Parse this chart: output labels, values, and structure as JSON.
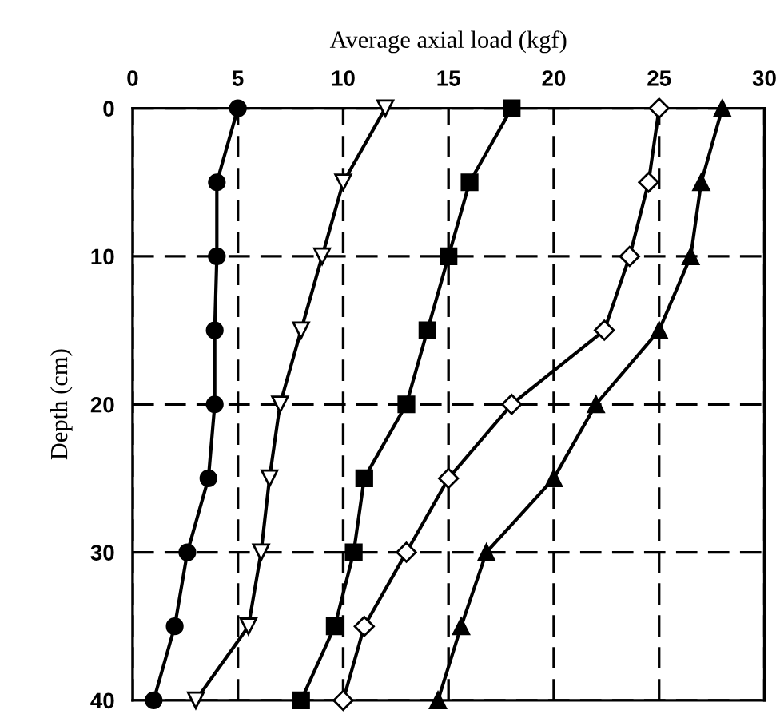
{
  "chart_data": {
    "type": "line",
    "xlabel": "Average axial load (kgf)",
    "ylabel": "Depth (cm)",
    "xlim": [
      0,
      30
    ],
    "xticks": [
      0,
      5,
      10,
      15,
      20,
      25,
      30
    ],
    "ylim": [
      40,
      0
    ],
    "yticks": [
      0,
      10,
      20,
      30,
      40
    ],
    "grid": true,
    "line_style": "solid",
    "series": [
      {
        "color": "#000000",
        "marker": "circle",
        "x": [
          5,
          4,
          4,
          3.9,
          3.9,
          3.6,
          2.6,
          2,
          1
        ],
        "values": [
          0,
          5,
          10,
          15,
          20,
          25,
          30,
          35,
          40
        ]
      },
      {
        "color": "#ffffff",
        "marker": "triangle-down",
        "x": [
          12,
          10,
          9,
          8,
          7,
          6.5,
          6.1,
          5.5,
          3
        ],
        "values": [
          0,
          5,
          10,
          15,
          20,
          25,
          30,
          35,
          40
        ]
      },
      {
        "color": "#000000",
        "marker": "square",
        "x": [
          18,
          16,
          15,
          14,
          13,
          11,
          10.5,
          9.6,
          8
        ],
        "values": [
          0,
          5,
          10,
          15,
          20,
          25,
          30,
          35,
          40
        ]
      },
      {
        "color": "#ffffff",
        "marker": "diamond",
        "x": [
          25,
          24.5,
          23.6,
          22.4,
          18,
          15,
          13,
          11,
          10
        ],
        "values": [
          0,
          5,
          10,
          15,
          20,
          25,
          30,
          35,
          40
        ]
      },
      {
        "color": "#000000",
        "marker": "triangle",
        "x": [
          28,
          27,
          26.5,
          25,
          22,
          20,
          16.8,
          15.6,
          14.5
        ],
        "values": [
          0,
          5,
          10,
          15,
          20,
          25,
          30,
          35,
          40
        ]
      }
    ]
  }
}
